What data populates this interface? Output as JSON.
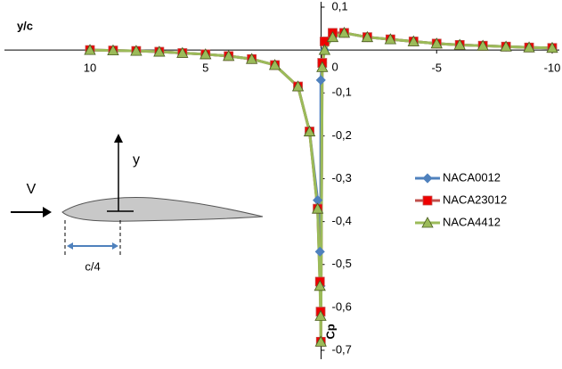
{
  "chart_data": {
    "type": "line",
    "x_label": "y/c",
    "y_label": "Cp",
    "annotations": [
      "V",
      "y",
      "c/4"
    ],
    "x": [
      10,
      9,
      8,
      7,
      6,
      5,
      4,
      3,
      2,
      1,
      0.5,
      0.15,
      0.05,
      0.02,
      0.01,
      -0.05,
      -0.15,
      -0.5,
      -1,
      -2,
      -3,
      -4,
      -5,
      -6,
      -7,
      -8,
      -9,
      -10
    ],
    "series": [
      {
        "name": "NACA0012",
        "color": "#4f81bd",
        "marker": "diamond",
        "values": [
          0,
          -0.001,
          -0.002,
          -0.004,
          -0.007,
          -0.01,
          -0.014,
          -0.021,
          -0.035,
          -0.085,
          -0.19,
          -0.35,
          -0.47,
          -0.55,
          -0.07,
          -0.03,
          0,
          0.03,
          0.04,
          0.03,
          0.025,
          0.02,
          0.015,
          0.012,
          0.01,
          0.008,
          0.006,
          0.005
        ]
      },
      {
        "name": "NACA23012",
        "color": "#c0504d",
        "marker": "square",
        "values": [
          0,
          -0.001,
          -0.002,
          -0.004,
          -0.007,
          -0.01,
          -0.014,
          -0.021,
          -0.035,
          -0.085,
          -0.19,
          -0.37,
          -0.54,
          -0.61,
          -0.68,
          -0.03,
          0.02,
          0.04,
          0.04,
          0.03,
          0.025,
          0.02,
          0.015,
          0.012,
          0.01,
          0.008,
          0.006,
          0.005
        ]
      },
      {
        "name": "NACA4412",
        "color": "#9bbb59",
        "marker": "triangle",
        "values": [
          0,
          -0.001,
          -0.002,
          -0.004,
          -0.007,
          -0.01,
          -0.014,
          -0.021,
          -0.035,
          -0.085,
          -0.19,
          -0.37,
          -0.55,
          -0.62,
          -0.68,
          -0.04,
          0,
          0.03,
          0.04,
          0.03,
          0.025,
          0.02,
          0.015,
          0.012,
          0.01,
          0.008,
          0.006,
          0.005
        ]
      }
    ],
    "xlim": [
      13.7,
      -10
    ],
    "ylim": [
      -0.7,
      0.1
    ],
    "xticks": [
      10,
      5,
      -5,
      -10
    ],
    "yticks": [
      {
        "value": 0.1,
        "label": "0,1"
      },
      0,
      {
        "value": -0.1,
        "label": "-0,1"
      },
      {
        "value": -0.2,
        "label": "-0,2"
      },
      {
        "value": -0.3,
        "label": "-0,3"
      },
      {
        "value": -0.4,
        "label": "-0,4"
      },
      {
        "value": -0.5,
        "label": "-0,5"
      },
      {
        "value": -0.6,
        "label": "-0,6"
      },
      {
        "value": -0.7,
        "label": "-0,7"
      }
    ],
    "grid": false,
    "legend": "right"
  }
}
